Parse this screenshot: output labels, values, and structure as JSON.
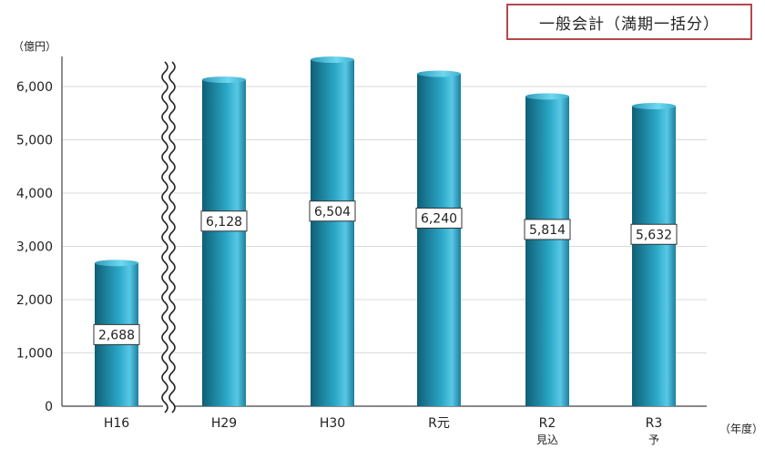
{
  "chart_data": {
    "type": "bar",
    "title": "一般会計（満期一括分）",
    "ylabel": "（億円）",
    "xlabel": "（年度）",
    "categories": [
      {
        "line1": "H16",
        "line2": ""
      },
      {
        "line1": "H29",
        "line2": ""
      },
      {
        "line1": "H30",
        "line2": ""
      },
      {
        "line1": "R元",
        "line2": ""
      },
      {
        "line1": "R2",
        "line2": "見込"
      },
      {
        "line1": "R3",
        "line2": "予"
      }
    ],
    "values": [
      2688,
      6128,
      6504,
      6240,
      5814,
      5632
    ],
    "value_labels": [
      "2,688",
      "6,128",
      "6,504",
      "6,240",
      "5,814",
      "5,632"
    ],
    "yticks": [
      "0",
      "1,000",
      "2,000",
      "3,000",
      "4,000",
      "5,000",
      "6,000"
    ],
    "ylim": [
      0,
      6500
    ],
    "grid": true,
    "axis_break_after_index": 0,
    "colors": {
      "bar_dark": "#0f5f76",
      "bar_mid": "#2aa6c6",
      "bar_light": "#6fd8f0",
      "grid": "#d9d9d9",
      "frame": "#b5484b"
    }
  }
}
